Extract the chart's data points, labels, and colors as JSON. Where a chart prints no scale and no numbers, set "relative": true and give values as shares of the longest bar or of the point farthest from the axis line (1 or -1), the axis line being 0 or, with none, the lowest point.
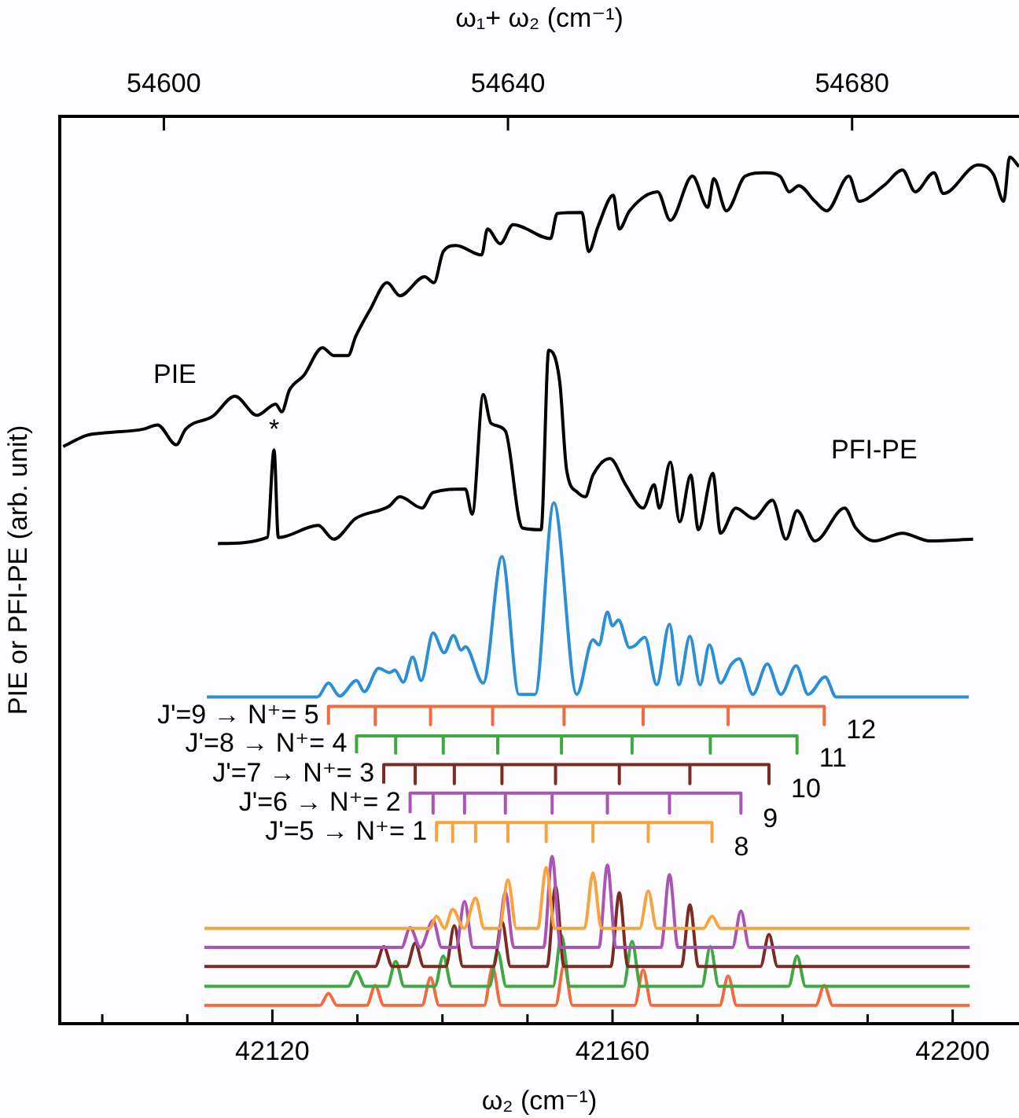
{
  "chart_data": {
    "type": "line",
    "relative": true,
    "marker": "none",
    "xlabel": "ω₂ (cm⁻¹)",
    "x2label": "ω₁+ ω₂ (cm⁻¹)",
    "ylabel": "PIE or PFI-PE (arb. unit)",
    "xlim": [
      42095.0,
      42207.8
    ],
    "xticks": [
      {
        "value": 42100,
        "label": null
      },
      {
        "value": 42110,
        "label": null
      },
      42120,
      {
        "value": 42130,
        "label": null
      },
      {
        "value": 42140,
        "label": null
      },
      {
        "value": 42150,
        "label": null
      },
      42160,
      {
        "value": 42170,
        "label": null
      },
      {
        "value": 42180,
        "label": null
      },
      {
        "value": 42190,
        "label": null
      },
      42200
    ],
    "x2lim": [
      54587.9,
      54699.4
    ],
    "x2ticks": [
      54600,
      54640,
      54680
    ],
    "series": [
      {
        "color": "#000000",
        "x": [
          42095.4,
          42098.2,
          42100.6,
          42104.8,
          42106.5,
          42108.7,
          42109.8,
          42113.0,
          42115.6,
          42118.2,
          42120.4,
          42121.1,
          42122.0,
          42123.7,
          42125.9,
          42127.2,
          42128.9,
          42129.8,
          42131.5,
          42133.5,
          42135.0,
          42137.9,
          42139.0,
          42140.1,
          42141.6,
          42144.6,
          42145.3,
          42146.8,
          42148.3,
          42152.7,
          42153.5,
          42156.4,
          42157.2,
          42158.3,
          42160.1,
          42160.8,
          42162.0,
          42165.3,
          42166.8,
          42169.4,
          42171.2,
          42171.9,
          42173.4,
          42175.6,
          42177.9,
          42179.7,
          42180.8,
          42181.9,
          42183.8,
          42185.2,
          42187.8,
          42189.0,
          42191.9,
          42194.1,
          42195.6,
          42197.8,
          42198.9,
          42203.0,
          42204.8,
          42206.0,
          42206.7,
          42207.8
        ],
        "values": [
          0.666,
          0.679,
          0.682,
          0.686,
          0.691,
          0.668,
          0.686,
          0.701,
          0.724,
          0.702,
          0.715,
          0.706,
          0.731,
          0.748,
          0.78,
          0.771,
          0.771,
          0.793,
          0.824,
          0.855,
          0.84,
          0.862,
          0.855,
          0.891,
          0.898,
          0.887,
          0.917,
          0.9,
          0.922,
          0.906,
          0.935,
          0.936,
          0.891,
          0.92,
          0.956,
          0.917,
          0.938,
          0.96,
          0.927,
          0.978,
          0.942,
          0.975,
          0.938,
          0.978,
          0.982,
          0.978,
          0.96,
          0.967,
          0.949,
          0.938,
          0.978,
          0.949,
          0.967,
          0.985,
          0.96,
          0.982,
          0.958,
          0.991,
          0.98,
          0.949,
          1.0,
          0.989
        ]
      },
      {
        "color": "#000000",
        "x": [
          42113.6,
          42119.4,
          42120.2,
          42120.7,
          42125.4,
          42127.2,
          42129.8,
          42133.7,
          42135.0,
          42137.6,
          42138.9,
          42142.7,
          42143.5,
          42144.8,
          42145.7,
          42147.4,
          42149.0,
          42149.4,
          42151.6,
          42152.5,
          42153.8,
          42154.6,
          42155.9,
          42156.8,
          42157.7,
          42159.7,
          42161.6,
          42163.6,
          42164.9,
          42165.5,
          42166.8,
          42167.9,
          42169.2,
          42170.1,
          42171.8,
          42172.7,
          42174.5,
          42176.6,
          42178.8,
          42180.4,
          42181.7,
          42183.8,
          42187.3,
          42188.6,
          42190.8,
          42194.1,
          42197.3,
          42202.4
        ],
        "values": [
          0.554,
          0.561,
          0.662,
          0.561,
          0.575,
          0.559,
          0.583,
          0.597,
          0.608,
          0.595,
          0.613,
          0.617,
          0.588,
          0.726,
          0.693,
          0.684,
          0.583,
          0.572,
          0.57,
          0.777,
          0.74,
          0.639,
          0.613,
          0.608,
          0.633,
          0.652,
          0.621,
          0.595,
          0.622,
          0.595,
          0.648,
          0.579,
          0.633,
          0.57,
          0.635,
          0.566,
          0.595,
          0.583,
          0.604,
          0.559,
          0.592,
          0.557,
          0.595,
          0.572,
          0.557,
          0.566,
          0.557,
          0.559
        ]
      },
      {
        "color": "#2a8fd6",
        "x": [
          42112.3,
          42125.3,
          42126.6,
          42127.9,
          42129.9,
          42130.8,
          42132.5,
          42133.8,
          42134.4,
          42135.4,
          42136.5,
          42137.5,
          42138.9,
          42140.2,
          42141.3,
          42142.2,
          42142.7,
          42144.8,
          42147.0,
          42149.0,
          42150.9,
          42153.1,
          42155.8,
          42157.7,
          42158.4,
          42159.4,
          42160.0,
          42160.7,
          42162.0,
          42162.6,
          42163.8,
          42165.2,
          42166.7,
          42167.8,
          42169.1,
          42170.3,
          42171.4,
          42172.7,
          42174.0,
          42174.9,
          42176.5,
          42178.2,
          42179.8,
          42181.6,
          42183.0,
          42185.0,
          42186.3,
          42201.9
        ],
        "values": [
          0.377,
          0.377,
          0.393,
          0.378,
          0.396,
          0.383,
          0.41,
          0.405,
          0.408,
          0.394,
          0.423,
          0.396,
          0.451,
          0.428,
          0.448,
          0.431,
          0.435,
          0.393,
          0.539,
          0.38,
          0.38,
          0.601,
          0.38,
          0.443,
          0.437,
          0.475,
          0.459,
          0.466,
          0.434,
          0.436,
          0.446,
          0.391,
          0.461,
          0.391,
          0.447,
          0.391,
          0.437,
          0.393,
          0.415,
          0.421,
          0.38,
          0.415,
          0.38,
          0.413,
          0.38,
          0.4,
          0.377,
          0.377
        ]
      },
      {
        "name": "J'=9 → N⁺= 5",
        "color": "#f26a3d",
        "x": [
          42126.6,
          42126.6,
          42132.1,
          42132.1,
          42132.1,
          42138.6,
          42138.6,
          42138.6,
          42145.9,
          42145.9,
          42145.9,
          42154.3,
          42154.3,
          42154.3,
          42163.6,
          42163.6,
          42163.6,
          42173.6,
          42173.6,
          42173.6,
          42184.9,
          42184.9
        ],
        "values": [
          0.345,
          0.366,
          0.366,
          0.345,
          0.366,
          0.366,
          0.345,
          0.366,
          0.366,
          0.345,
          0.366,
          0.366,
          0.345,
          0.366,
          0.366,
          0.345,
          0.366,
          0.366,
          0.345,
          0.366,
          0.366,
          0.345
        ]
      },
      {
        "name": "J'=8 → N⁺= 4",
        "color": "#3fa845",
        "x": [
          42129.9,
          42129.9,
          42134.5,
          42134.5,
          42134.5,
          42140.1,
          42140.1,
          42140.1,
          42146.5,
          42146.5,
          42146.5,
          42154.0,
          42154.0,
          42154.0,
          42162.3,
          42162.3,
          42162.3,
          42171.5,
          42171.5,
          42171.5,
          42181.7,
          42181.7
        ],
        "values": [
          0.312,
          0.332,
          0.332,
          0.312,
          0.332,
          0.332,
          0.312,
          0.332,
          0.332,
          0.312,
          0.332,
          0.332,
          0.312,
          0.332,
          0.332,
          0.312,
          0.332,
          0.332,
          0.312,
          0.332,
          0.332,
          0.312
        ]
      },
      {
        "name": "J'=7 → N⁺= 3",
        "color": "#7d2a22",
        "x": [
          42133.1,
          42133.1,
          42136.8,
          42136.8,
          42136.8,
          42141.4,
          42141.4,
          42141.4,
          42147.0,
          42147.0,
          42147.0,
          42153.3,
          42153.3,
          42153.3,
          42160.8,
          42160.8,
          42160.8,
          42169.1,
          42169.1,
          42169.1,
          42178.4,
          42178.4
        ],
        "values": [
          0.277,
          0.299,
          0.299,
          0.277,
          0.299,
          0.299,
          0.277,
          0.299,
          0.299,
          0.277,
          0.299,
          0.299,
          0.277,
          0.299,
          0.299,
          0.277,
          0.299,
          0.299,
          0.277,
          0.299,
          0.299,
          0.277
        ]
      },
      {
        "name": "J'=6 → N⁺= 2",
        "color": "#a855b5",
        "x": [
          42136.2,
          42136.2,
          42138.9,
          42138.9,
          42138.9,
          42142.6,
          42142.6,
          42142.6,
          42147.4,
          42147.4,
          42147.4,
          42152.9,
          42152.9,
          42152.9,
          42159.4,
          42159.4,
          42159.4,
          42166.7,
          42166.7,
          42166.7,
          42175.1,
          42175.1
        ],
        "values": [
          0.243,
          0.266,
          0.266,
          0.243,
          0.266,
          0.266,
          0.243,
          0.266,
          0.266,
          0.243,
          0.266,
          0.266,
          0.243,
          0.266,
          0.266,
          0.243,
          0.266,
          0.266,
          0.243,
          0.266,
          0.266,
          0.243
        ]
      },
      {
        "name": "J'=5 → N⁺= 1",
        "color": "#f8a33e",
        "x": [
          42139.3,
          42139.3,
          42141.2,
          42141.2,
          42141.2,
          42143.9,
          42143.9,
          42143.9,
          42147.7,
          42147.7,
          42147.7,
          42152.2,
          42152.2,
          42152.2,
          42157.7,
          42157.7,
          42157.7,
          42164.2,
          42164.2,
          42164.2,
          42171.7,
          42171.7
        ],
        "values": [
          0.21,
          0.232,
          0.232,
          0.21,
          0.232,
          0.232,
          0.21,
          0.232,
          0.232,
          0.21,
          0.232,
          0.232,
          0.21,
          0.232,
          0.232,
          0.21,
          0.232,
          0.232,
          0.21,
          0.232,
          0.232,
          0.21
        ]
      },
      {
        "color": "#f8a33e",
        "x": [
          42112.0,
          42138.5,
          42139.3,
          42140.25,
          42141.2,
          42142.55,
          42143.9,
          42144.9,
          42146.7,
          42147.7,
          42148.7,
          42151.2,
          42152.2,
          42153.2,
          42156.7,
          42157.7,
          42158.7,
          42163.2,
          42164.2,
          42165.2,
          42170.7,
          42171.7,
          42172.7,
          42202.0
        ],
        "values": [
          0.11,
          0.11,
          0.124,
          0.11,
          0.132,
          0.11,
          0.145,
          0.11,
          0.11,
          0.166,
          0.11,
          0.11,
          0.18,
          0.11,
          0.11,
          0.174,
          0.11,
          0.11,
          0.153,
          0.11,
          0.11,
          0.124,
          0.11,
          0.11
        ]
      },
      {
        "color": "#a855b5",
        "x": [
          42112.0,
          42135.2,
          42136.2,
          42137.4,
          42138.9,
          42139.9,
          42141.6,
          42142.6,
          42143.6,
          42146.4,
          42147.4,
          42148.4,
          42151.9,
          42152.9,
          42153.9,
          42158.4,
          42159.4,
          42160.4,
          42165.7,
          42166.7,
          42167.7,
          42174.1,
          42175.1,
          42176.1,
          42202.0
        ],
        "values": [
          0.088,
          0.088,
          0.111,
          0.088,
          0.119,
          0.088,
          0.088,
          0.141,
          0.088,
          0.088,
          0.152,
          0.088,
          0.088,
          0.193,
          0.088,
          0.088,
          0.183,
          0.088,
          0.088,
          0.172,
          0.088,
          0.088,
          0.13,
          0.088,
          0.088
        ]
      },
      {
        "color": "#7d2a22",
        "x": [
          42112.0,
          42132.1,
          42133.1,
          42134.1,
          42135.8,
          42136.8,
          42137.8,
          42140.4,
          42141.4,
          42142.4,
          42146.0,
          42147.0,
          42148.0,
          42152.3,
          42153.3,
          42154.3,
          42159.8,
          42160.8,
          42161.8,
          42168.1,
          42169.1,
          42170.1,
          42177.4,
          42178.4,
          42179.4,
          42202.0
        ],
        "values": [
          0.066,
          0.066,
          0.089,
          0.066,
          0.066,
          0.093,
          0.066,
          0.066,
          0.113,
          0.066,
          0.066,
          0.118,
          0.066,
          0.066,
          0.158,
          0.066,
          0.066,
          0.151,
          0.066,
          0.066,
          0.137,
          0.066,
          0.066,
          0.103,
          0.066,
          0.066
        ]
      },
      {
        "color": "#3fa845",
        "x": [
          42112.0,
          42128.9,
          42129.9,
          42130.9,
          42133.5,
          42134.5,
          42135.5,
          42139.1,
          42140.1,
          42141.1,
          42145.5,
          42146.5,
          42147.5,
          42153.0,
          42154.0,
          42155.0,
          42161.3,
          42162.3,
          42163.3,
          42170.5,
          42171.5,
          42172.5,
          42180.7,
          42181.7,
          42182.7,
          42202.0
        ],
        "values": [
          0.043,
          0.043,
          0.06,
          0.043,
          0.043,
          0.072,
          0.043,
          0.043,
          0.078,
          0.043,
          0.043,
          0.083,
          0.043,
          0.043,
          0.102,
          0.043,
          0.043,
          0.095,
          0.043,
          0.043,
          0.089,
          0.043,
          0.043,
          0.078,
          0.043,
          0.043
        ]
      },
      {
        "color": "#f26a3d",
        "x": [
          42112.0,
          42125.6,
          42126.6,
          42127.6,
          42131.1,
          42132.1,
          42133.1,
          42137.6,
          42138.6,
          42139.6,
          42144.9,
          42145.9,
          42146.9,
          42153.3,
          42154.3,
          42155.3,
          42162.6,
          42163.6,
          42164.6,
          42172.6,
          42173.6,
          42174.6,
          42183.9,
          42184.9,
          42185.9,
          42202.0
        ],
        "values": [
          0.021,
          0.021,
          0.035,
          0.021,
          0.021,
          0.044,
          0.021,
          0.021,
          0.053,
          0.021,
          0.021,
          0.065,
          0.021,
          0.021,
          0.068,
          0.021,
          0.021,
          0.062,
          0.021,
          0.021,
          0.055,
          0.021,
          0.021,
          0.044,
          0.021,
          0.021
        ]
      }
    ],
    "annotations": [
      "PIE",
      "PFI-PE",
      {
        "text": "*",
        "x": 42120.2,
        "y": 0.662
      },
      {
        "text": "12",
        "x": 42184.9,
        "y": 0.345
      },
      {
        "text": "11",
        "x": 42181.7,
        "y": 0.312
      },
      {
        "text": "10",
        "x": 42178.4,
        "y": 0.277
      },
      {
        "text": "9",
        "x": 42175.1,
        "y": 0.243
      },
      {
        "text": "8",
        "x": 42171.7,
        "y": 0.21
      }
    ]
  }
}
